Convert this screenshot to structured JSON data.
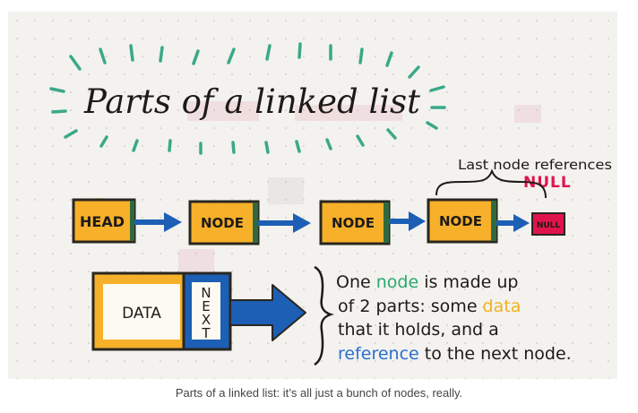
{
  "title": "Parts of a linked list",
  "chain": {
    "head": "HEAD",
    "nodes": [
      "NODE",
      "NODE",
      "NODE"
    ],
    "null_box": "NULL"
  },
  "last_node_note": {
    "line1": "Last node references",
    "null_word": "NULL"
  },
  "node_parts": {
    "data_label": "DATA",
    "next_label": "NEXT"
  },
  "explanation": {
    "line1_pre": "One ",
    "line1_node": "node",
    "line1_post": " is made up",
    "line2_pre": "of 2 parts: some ",
    "line2_data": "data",
    "line3": "that it holds, and a",
    "line4_ref": "reference",
    "line4_post": " to the next node."
  },
  "caption": "Parts of a linked list: it’s all just a bunch of nodes, really.",
  "colors": {
    "node_fill": "#f7b02a",
    "node_border": "#2a2620",
    "node_right": "#2f6a3f",
    "arrow": "#1c5fb5",
    "rays": "#3aa889",
    "null_red": "#e0144c",
    "text_green": "#2aa86f",
    "text_yellow": "#f1b21e",
    "text_blue": "#2a6fd1",
    "paper": "#f3f2ee"
  }
}
